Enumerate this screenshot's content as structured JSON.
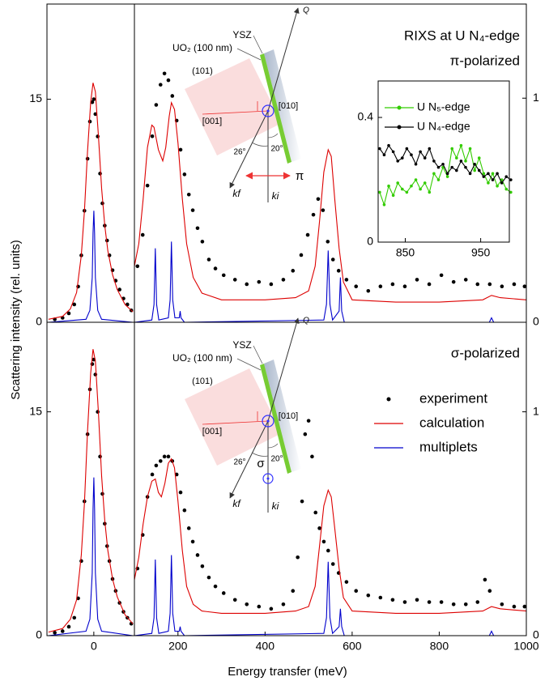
{
  "figure": {
    "x_label": "Energy transfer (meV)",
    "y_label": "Scattering intensity (rel. units)"
  },
  "chart_data": [
    {
      "type": "line",
      "xlim": [
        -60,
        52
      ],
      "ylim": [
        0,
        21.4
      ],
      "yticks": [
        0,
        15
      ],
      "series": [
        {
          "color": "#000000",
          "style": "markers",
          "x": [
            -50,
            -40,
            -32,
            -25,
            -20,
            -16,
            -12,
            -8,
            -5,
            -2,
            0,
            2,
            5,
            8,
            11,
            14,
            17,
            20,
            24,
            28,
            33,
            38,
            43,
            48
          ],
          "values": [
            0.2,
            0.3,
            0.6,
            1.2,
            2.4,
            4.5,
            7.5,
            11.0,
            13.5,
            14.8,
            15.0,
            14.0,
            12.5,
            10.0,
            8.0,
            6.5,
            5.5,
            4.5,
            3.5,
            2.8,
            2.2,
            1.6,
            1.2,
            0.8
          ]
        },
        {
          "color": "#dd0000",
          "style": "line",
          "x": [
            -58,
            -40,
            -30,
            -22,
            -16,
            -12,
            -8,
            -4,
            -1,
            2,
            6,
            10,
            14,
            18,
            24,
            30,
            40,
            50
          ],
          "values": [
            0.2,
            0.4,
            0.9,
            2.0,
            4.5,
            7.5,
            11.5,
            14.8,
            16.1,
            15.5,
            12.5,
            9.0,
            6.5,
            4.8,
            3.2,
            2.2,
            1.2,
            0.7
          ]
        },
        {
          "color": "#0000cc",
          "style": "line",
          "x": [
            -58,
            -10,
            -5,
            -2,
            -1,
            0,
            1,
            2,
            5,
            10,
            50
          ],
          "values": [
            0,
            0.2,
            0.8,
            3,
            6,
            7.5,
            6,
            3,
            0.8,
            0.2,
            0
          ]
        }
      ]
    },
    {
      "type": "line",
      "xlim": [
        100,
        1000
      ],
      "ylim": [
        0,
        1.42
      ],
      "yticks": [
        0,
        1
      ],
      "title": "RIXS at U N₄-edge",
      "subtitle": "π-polarized",
      "annotations": [
        "YSZ",
        "UO₂ (100 nm)",
        "(101)",
        "[001]",
        "[010]",
        "26°",
        "20°",
        "Q",
        "kf",
        "ki",
        "π"
      ],
      "series": [
        {
          "color": "#000000",
          "style": "markers",
          "x": [
            107,
            119,
            130,
            141,
            150,
            160,
            169,
            178,
            187,
            197,
            206,
            215,
            225,
            234,
            245,
            256,
            271,
            286,
            305,
            331,
            358,
            386,
            414,
            442,
            464,
            483,
            498,
            511,
            522,
            533,
            544,
            556,
            569,
            587,
            609,
            637,
            665,
            693,
            721,
            749,
            777,
            805,
            833,
            861,
            888,
            916,
            944,
            972,
            996
          ],
          "values": [
            0.25,
            0.39,
            0.61,
            0.83,
            0.97,
            1.06,
            1.11,
            1.08,
            1.01,
            0.9,
            0.77,
            0.66,
            0.57,
            0.5,
            0.42,
            0.36,
            0.28,
            0.24,
            0.21,
            0.19,
            0.17,
            0.18,
            0.17,
            0.19,
            0.23,
            0.3,
            0.39,
            0.48,
            0.55,
            0.5,
            0.36,
            0.28,
            0.23,
            0.19,
            0.16,
            0.14,
            0.16,
            0.17,
            0.16,
            0.19,
            0.17,
            0.21,
            0.18,
            0.19,
            0.17,
            0.17,
            0.16,
            0.17,
            0.16
          ]
        },
        {
          "color": "#dd0000",
          "style": "line",
          "x": [
            100,
            110,
            120,
            130,
            140,
            145,
            155,
            165,
            172,
            180,
            185,
            192,
            200,
            210,
            220,
            235,
            255,
            300,
            400,
            470,
            500,
            515,
            525,
            535,
            545,
            552,
            560,
            570,
            580,
            600,
            700,
            800,
            900,
            920,
            940,
            1000
          ],
          "values": [
            0.25,
            0.35,
            0.55,
            0.78,
            0.88,
            0.87,
            0.77,
            0.72,
            0.78,
            0.92,
            0.98,
            0.95,
            0.8,
            0.55,
            0.35,
            0.2,
            0.13,
            0.1,
            0.1,
            0.11,
            0.14,
            0.25,
            0.45,
            0.67,
            0.77,
            0.74,
            0.55,
            0.33,
            0.18,
            0.1,
            0.09,
            0.09,
            0.1,
            0.12,
            0.11,
            0.1
          ]
        },
        {
          "color": "#0000cc",
          "style": "line",
          "x": [
            100,
            140,
            145,
            148,
            151,
            156,
            178,
            182,
            185,
            188,
            193,
            203,
            205,
            207,
            215,
            535,
            541,
            545,
            549,
            555,
            570,
            573,
            576,
            582,
            915,
            920,
            925,
            1000
          ],
          "values": [
            0,
            0.01,
            0.08,
            0.33,
            0.08,
            0.01,
            0.02,
            0.1,
            0.36,
            0.1,
            0.02,
            0.02,
            0.05,
            0.02,
            0,
            0.01,
            0.08,
            0.32,
            0.08,
            0.01,
            0.05,
            0.2,
            0.05,
            0,
            0,
            0.02,
            0,
            0
          ]
        }
      ]
    },
    {
      "type": "line",
      "xlim": [
        -60,
        52
      ],
      "ylim": [
        0,
        21
      ],
      "yticks": [
        0,
        15
      ],
      "xticks": [
        0
      ],
      "series": [
        {
          "color": "#000000",
          "style": "markers",
          "x": [
            -50,
            -40,
            -32,
            -25,
            -20,
            -16,
            -12,
            -8,
            -5,
            -2,
            0,
            2,
            5,
            8,
            11,
            14,
            17,
            20,
            24,
            28,
            33,
            38,
            43,
            48
          ],
          "values": [
            0.2,
            0.3,
            0.6,
            1.2,
            2.5,
            5,
            9,
            13.5,
            16.5,
            18.2,
            18.5,
            17.5,
            15,
            12,
            9.5,
            7.5,
            6,
            5,
            3.8,
            3,
            2.2,
            1.6,
            1.2,
            0.8
          ]
        },
        {
          "color": "#dd0000",
          "style": "line",
          "x": [
            -58,
            -40,
            -30,
            -22,
            -16,
            -12,
            -8,
            -4,
            -1,
            2,
            6,
            10,
            14,
            18,
            24,
            30,
            40,
            50
          ],
          "values": [
            0.24,
            0.48,
            1.1,
            2.4,
            5.4,
            8.9,
            13.7,
            17.6,
            19.2,
            18.4,
            14.9,
            10.7,
            7.7,
            5.7,
            3.8,
            2.6,
            1.4,
            0.8
          ]
        },
        {
          "color": "#0000cc",
          "style": "line",
          "x": [
            -58,
            -10,
            -5,
            -2,
            -1,
            0,
            1,
            2,
            5,
            10,
            50
          ],
          "values": [
            0,
            0.3,
            1.1,
            4.2,
            8.5,
            10.6,
            8.5,
            4.2,
            1.1,
            0.3,
            0
          ]
        }
      ]
    },
    {
      "type": "line",
      "xlim": [
        100,
        1000
      ],
      "ylim": [
        0,
        1.4
      ],
      "yticks": [
        0,
        1
      ],
      "xticks": [
        200,
        400,
        600,
        800,
        1000
      ],
      "subtitle": "σ-polarized",
      "legend": "right",
      "annotations": [
        "YSZ",
        "UO₂ (100 nm)",
        "(101)",
        "[001]",
        "[010]",
        "26°",
        "20°",
        "Q",
        "kf",
        "ki",
        "σ"
      ],
      "series": [
        {
          "name": "experiment",
          "color": "#000000",
          "style": "markers",
          "x": [
            107,
            119,
            130,
            141,
            150,
            160,
            169,
            178,
            187,
            197,
            206,
            215,
            225,
            234,
            245,
            256,
            271,
            286,
            305,
            331,
            358,
            386,
            414,
            442,
            464,
            475,
            485,
            492,
            500,
            508,
            516,
            525,
            535,
            545,
            556,
            569,
            587,
            609,
            637,
            665,
            693,
            721,
            749,
            777,
            805,
            833,
            861,
            888,
            905,
            916,
            944,
            972,
            996
          ],
          "values": [
            0.3,
            0.45,
            0.62,
            0.72,
            0.76,
            0.78,
            0.8,
            0.8,
            0.78,
            0.72,
            0.64,
            0.56,
            0.48,
            0.42,
            0.36,
            0.31,
            0.26,
            0.22,
            0.19,
            0.16,
            0.14,
            0.13,
            0.12,
            0.14,
            0.2,
            0.35,
            0.6,
            0.9,
            0.96,
            0.8,
            0.55,
            0.48,
            0.42,
            0.38,
            0.32,
            0.28,
            0.24,
            0.2,
            0.18,
            0.17,
            0.16,
            0.15,
            0.16,
            0.15,
            0.15,
            0.14,
            0.14,
            0.15,
            0.25,
            0.2,
            0.14,
            0.13,
            0.13
          ]
        },
        {
          "name": "calculation",
          "color": "#dd0000",
          "style": "line",
          "x": [
            100,
            110,
            120,
            130,
            140,
            148,
            155,
            162,
            170,
            178,
            185,
            192,
            200,
            210,
            220,
            235,
            255,
            300,
            400,
            470,
            500,
            515,
            525,
            535,
            545,
            552,
            560,
            570,
            580,
            600,
            700,
            800,
            900,
            920,
            940,
            1000
          ],
          "values": [
            0.25,
            0.35,
            0.5,
            0.62,
            0.69,
            0.7,
            0.64,
            0.62,
            0.68,
            0.77,
            0.79,
            0.75,
            0.6,
            0.38,
            0.22,
            0.14,
            0.11,
            0.1,
            0.1,
            0.11,
            0.13,
            0.22,
            0.4,
            0.58,
            0.65,
            0.62,
            0.48,
            0.3,
            0.17,
            0.11,
            0.1,
            0.1,
            0.11,
            0.13,
            0.12,
            0.11
          ]
        },
        {
          "name": "multiplets",
          "color": "#0000cc",
          "style": "line",
          "x": [
            100,
            140,
            145,
            148,
            151,
            156,
            178,
            182,
            185,
            188,
            193,
            203,
            205,
            207,
            215,
            535,
            541,
            545,
            549,
            555,
            570,
            573,
            576,
            582,
            915,
            920,
            925,
            1000
          ],
          "values": [
            0,
            0.01,
            0.08,
            0.34,
            0.08,
            0.01,
            0.02,
            0.1,
            0.36,
            0.1,
            0.02,
            0.02,
            0.04,
            0.02,
            0,
            0.01,
            0.08,
            0.33,
            0.08,
            0.01,
            0.04,
            0.12,
            0.04,
            0,
            0,
            0.02,
            0,
            0
          ]
        }
      ]
    },
    {
      "type": "line",
      "xlim": [
        814,
        988
      ],
      "ylim": [
        0,
        0.517
      ],
      "xticks": [
        850,
        950
      ],
      "yticks": [
        0,
        0.4
      ],
      "legend": "upper left",
      "x": [
        816,
        822,
        828,
        834,
        840,
        846,
        852,
        858,
        864,
        870,
        876,
        882,
        888,
        894,
        900,
        906,
        912,
        918,
        924,
        930,
        936,
        942,
        948,
        954,
        960,
        966,
        972,
        978,
        984,
        990
      ],
      "series": [
        {
          "name": "U N₅-edge",
          "color": "#33cc00",
          "style": "line+markers",
          "values": [
            0.16,
            0.12,
            0.18,
            0.15,
            0.19,
            0.17,
            0.16,
            0.18,
            0.2,
            0.17,
            0.19,
            0.16,
            0.22,
            0.2,
            0.24,
            0.21,
            0.3,
            0.27,
            0.31,
            0.26,
            0.3,
            0.23,
            0.27,
            0.22,
            0.19,
            0.22,
            0.18,
            0.2,
            0.17,
            0.16
          ]
        },
        {
          "name": "U N₄-edge",
          "color": "#000000",
          "style": "line+markers",
          "values": [
            0.3,
            0.28,
            0.31,
            0.29,
            0.26,
            0.27,
            0.3,
            0.28,
            0.25,
            0.29,
            0.27,
            0.3,
            0.26,
            0.24,
            0.25,
            0.22,
            0.24,
            0.23,
            0.26,
            0.24,
            0.22,
            0.25,
            0.23,
            0.21,
            0.22,
            0.2,
            0.22,
            0.19,
            0.21,
            0.2
          ]
        }
      ]
    }
  ]
}
